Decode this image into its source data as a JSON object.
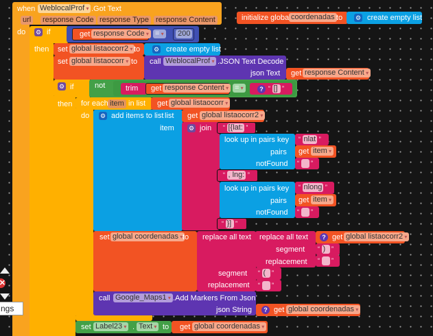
{
  "event": {
    "when": "when",
    "component": "WeblocalProf",
    "event": ".Got Text",
    "params": [
      "url",
      "response Code",
      "response Type",
      "response Content"
    ],
    "do": "do"
  },
  "if1": {
    "if": "if",
    "then": "then",
    "get": "get",
    "var": "response Code",
    "op": "=",
    "value": "200"
  },
  "set1": {
    "set": "set",
    "var": "global listaocorr2",
    "to": "to",
    "create": "create empty list"
  },
  "set2": {
    "set": "set",
    "var": "global listaocorr",
    "to": "to",
    "call": "call",
    "component": "WeblocalProf",
    "method": ".JSON Text Decode",
    "arg": "json Text",
    "get": "get",
    "getvar": "response Content"
  },
  "if2": {
    "if": "if",
    "then": "then",
    "not": "not",
    "trim": "trim",
    "get": "get",
    "var": "response Content",
    "op": "=",
    "text": "[]"
  },
  "foreach": {
    "for_each": "for each",
    "item": "item",
    "in_list": "in list",
    "get": "get",
    "var": "global listaocorr",
    "do": "do"
  },
  "add": {
    "label": "add items to list",
    "list": "list",
    "get": "get",
    "var": "global listaocorr2",
    "item": "item",
    "join": "join",
    "t1": "[{lat:",
    "lookup": "look up in pairs  key",
    "key1": "nlat",
    "pairs": "pairs",
    "get_item": "get",
    "item_var": "item",
    "notFound": "notFound",
    "t2": ", lng:",
    "key2": "nlong",
    "t3": "}]"
  },
  "set3": {
    "set": "set",
    "var": "global coordenadas",
    "to": "to",
    "replace": "replace all text",
    "segment": "segment",
    "replacement": "replacement",
    "get": "get",
    "getvar": "global listaocorr2",
    "seg_inner": ")",
    "seg_outer": "("
  },
  "maps": {
    "call": "call",
    "component": "Google_Maps1",
    "method": ".Add Markers From Json",
    "arg": "json String",
    "get": "get",
    "getvar": "global coordenadas"
  },
  "setlabel": {
    "set": "set",
    "component": "Label23",
    "dot": ".",
    "prop": "Text",
    "to": "to",
    "get": "get",
    "getvar": "global coordenadas"
  },
  "init": {
    "label": "initialize global",
    "name": "coordenadas",
    "to": "to",
    "create": "create empty list"
  },
  "overlay": {
    "text": "ngs"
  },
  "colors": {
    "event": "#f9a31f",
    "control": "#ffb000",
    "variable": "#f25323",
    "procedure": "#5e35b1",
    "text": "#d81b60",
    "list": "#0ba0e3",
    "logic": "#43a047",
    "math": "#3f4fb3"
  }
}
